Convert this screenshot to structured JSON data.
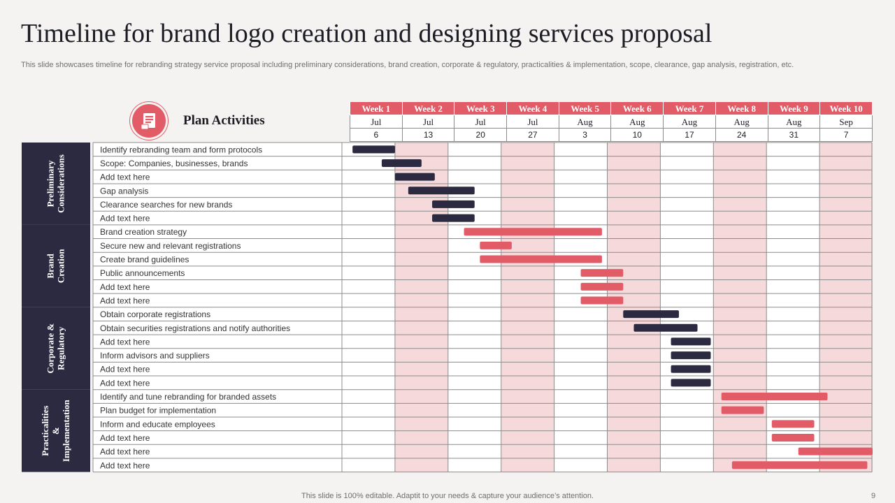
{
  "title": "Timeline for brand logo creation and designing services proposal",
  "subtitle": "This slide showcases timeline for rebranding strategy service proposal including preliminary considerations, brand creation, corporate & regulatory, practicalities & implementation, scope, clearance, gap analysis, registration, etc.",
  "plan_label": "Plan Activities",
  "icon": "document-stack-icon",
  "footer": "This slide is 100% editable. Adaptit to your needs & capture your audience’s attention.",
  "page_number": "9",
  "colors": {
    "accent": "#e25c67",
    "dark": "#2b2a40",
    "shade": "#f6d9da",
    "grid": "#8c8c8c"
  },
  "weeks": [
    {
      "label": "Week 1",
      "month": "Jul",
      "day": "6"
    },
    {
      "label": "Week 2",
      "month": "Jul",
      "day": "13"
    },
    {
      "label": "Week 3",
      "month": "Jul",
      "day": "20"
    },
    {
      "label": "Week 4",
      "month": "Jul",
      "day": "27"
    },
    {
      "label": "Week 5",
      "month": "Aug",
      "day": "3"
    },
    {
      "label": "Week 6",
      "month": "Aug",
      "day": "10"
    },
    {
      "label": "Week 7",
      "month": "Aug",
      "day": "17"
    },
    {
      "label": "Week 8",
      "month": "Aug",
      "day": "24"
    },
    {
      "label": "Week 9",
      "month": "Aug",
      "day": "31"
    },
    {
      "label": "Week 10",
      "month": "Sep",
      "day": "7"
    }
  ],
  "chart_data": {
    "type": "gantt",
    "title": "Timeline for brand logo creation and designing services proposal",
    "x_unit": "weeks",
    "x_range": [
      1,
      11
    ],
    "shaded_weeks": [
      2,
      4,
      6,
      8,
      10
    ],
    "groups": [
      {
        "name": "Preliminary Considerations",
        "lines": [
          "Preliminary",
          "Considerations"
        ],
        "color": "#2b2a40",
        "tasks": [
          {
            "label": "Identify rebranding team and form protocols",
            "start": 1.2,
            "end": 2.0
          },
          {
            "label": "Scope: Companies, businesses, brands",
            "start": 1.75,
            "end": 2.5
          },
          {
            "label": "Add text here",
            "start": 2.0,
            "end": 2.75
          },
          {
            "label": "Gap analysis",
            "start": 2.25,
            "end": 3.5
          },
          {
            "label": "Clearance searches for new brands",
            "start": 2.7,
            "end": 3.5
          },
          {
            "label": "Add text here",
            "start": 2.7,
            "end": 3.5
          }
        ]
      },
      {
        "name": "Brand Creation",
        "lines": [
          "Brand",
          "Creation"
        ],
        "color": "#e25c67",
        "tasks": [
          {
            "label": "Brand creation strategy",
            "start": 3.3,
            "end": 5.9
          },
          {
            "label": "Secure new and relevant registrations",
            "start": 3.6,
            "end": 4.2
          },
          {
            "label": "Create brand guidelines",
            "start": 3.6,
            "end": 5.9
          },
          {
            "label": "Public announcements",
            "start": 5.5,
            "end": 6.3
          },
          {
            "label": "Add text here",
            "start": 5.5,
            "end": 6.3
          },
          {
            "label": "Add text here",
            "start": 5.5,
            "end": 6.3
          }
        ]
      },
      {
        "name": "Corporate & Regulatory",
        "lines": [
          "Corporate &",
          "Regulatory"
        ],
        "color": "#2b2a40",
        "tasks": [
          {
            "label": "Obtain corporate registrations",
            "start": 6.3,
            "end": 7.35
          },
          {
            "label": "Obtain securities registrations and notify authorities",
            "start": 6.5,
            "end": 7.7
          },
          {
            "label": "Add text here",
            "start": 7.2,
            "end": 7.95
          },
          {
            "label": "Inform advisors and suppliers",
            "start": 7.2,
            "end": 7.95
          },
          {
            "label": "Add text here",
            "start": 7.2,
            "end": 7.95
          },
          {
            "label": "Add text here",
            "start": 7.2,
            "end": 7.95
          }
        ]
      },
      {
        "name": "Practicalities & Implementation",
        "lines": [
          "Practicalities",
          "&",
          "Implementation"
        ],
        "color": "#e25c67",
        "tasks": [
          {
            "label": "Identify and tune rebranding for branded assets",
            "start": 8.15,
            "end": 10.15
          },
          {
            "label": "Plan budget for implementation",
            "start": 8.15,
            "end": 8.95
          },
          {
            "label": "Inform and educate employees",
            "start": 9.1,
            "end": 9.9
          },
          {
            "label": "Add text here",
            "start": 9.1,
            "end": 9.9
          },
          {
            "label": "Add text here",
            "start": 9.6,
            "end": 11.0
          },
          {
            "label": "Add text here",
            "start": 8.35,
            "end": 10.9
          }
        ]
      }
    ]
  }
}
